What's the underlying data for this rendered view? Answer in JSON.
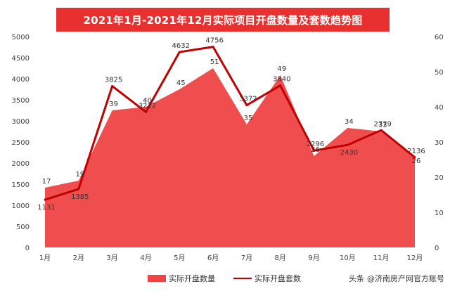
{
  "title": "2021年1月-2021年12月实际项目开盘数量及套数趋势图",
  "legend": {
    "area_label": "实际开盘数量",
    "line_label": "实际开盘套数"
  },
  "watermark": {
    "prefix": "头条",
    "account": "@济南房产网官方账号"
  },
  "colors": {
    "area": "#ef4444",
    "line": "#c00000",
    "title_bg": "#e8302e"
  },
  "chart_data": {
    "type": "area",
    "categories": [
      "1月",
      "2月",
      "3月",
      "4月",
      "5月",
      "6月",
      "7月",
      "8月",
      "9月",
      "10月",
      "11月",
      "12月"
    ],
    "series": [
      {
        "name": "实际开盘数量",
        "type": "area",
        "axis": "right",
        "values": [
          17,
          19,
          39,
          40,
          45,
          51,
          35,
          49,
          26,
          34,
          33,
          26
        ]
      },
      {
        "name": "实际开盘套数",
        "type": "line",
        "axis": "left",
        "values": [
          1131,
          1385,
          3825,
          3212,
          4632,
          4756,
          3372,
          3840,
          2296,
          2430,
          2779,
          2136
        ]
      }
    ],
    "y_left": {
      "ticks": [
        "0",
        "500",
        "1000",
        "1500",
        "2000",
        "2500",
        "3000",
        "3500",
        "4000",
        "4500",
        "5000"
      ],
      "ylim": [
        0,
        5000
      ]
    },
    "y_right": {
      "ticks": [
        "0",
        "10",
        "20",
        "30",
        "40",
        "50",
        "60"
      ],
      "ylim": [
        0,
        60
      ]
    },
    "grid": false,
    "legend_position": "bottom-center"
  }
}
